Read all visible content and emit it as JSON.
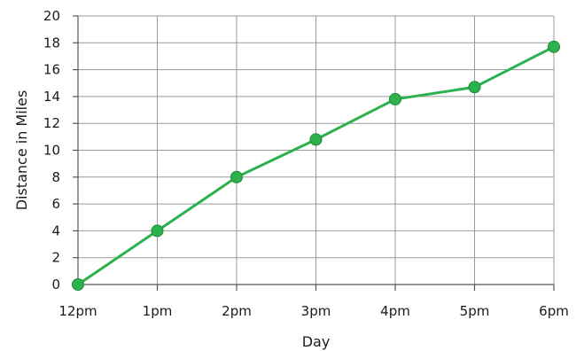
{
  "chart_data": {
    "type": "line",
    "title": "",
    "xlabel": "Day",
    "ylabel": "Distance in Miles",
    "categories": [
      "12pm",
      "1pm",
      "2pm",
      "3pm",
      "4pm",
      "5pm",
      "6pm"
    ],
    "yticks": [
      "0",
      "2",
      "4",
      "6",
      "8",
      "10",
      "12",
      "14",
      "16",
      "18",
      "20"
    ],
    "ylim": [
      0,
      20
    ],
    "grid": true,
    "series": [
      {
        "values": [
          0,
          4,
          8,
          10.8,
          13.8,
          14.7,
          17.7
        ],
        "color": "#2bb24c"
      }
    ]
  }
}
